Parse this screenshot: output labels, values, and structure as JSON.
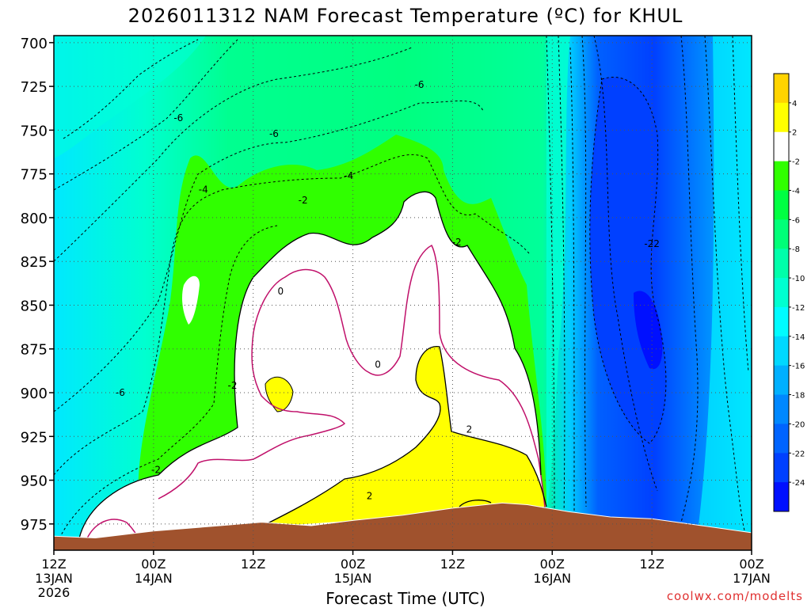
{
  "chart_data": {
    "type": "heatmap",
    "title": "2026011312 NAM Forecast Temperature (ºC) for KHUL",
    "xlabel": "Forecast Time (UTC)",
    "ylabel": "",
    "credit": "coolwx.com/modelts",
    "y_scale": "pressure (hPa, inverted)",
    "ylim": [
      990,
      696
    ],
    "y_ticks": [
      700,
      725,
      750,
      775,
      800,
      825,
      850,
      875,
      900,
      925,
      950,
      975
    ],
    "x_ticks": [
      {
        "hour": 0,
        "l1": "12Z",
        "l2": "13JAN",
        "l3": "2026"
      },
      {
        "hour": 12,
        "l1": "00Z",
        "l2": "14JAN",
        "l3": ""
      },
      {
        "hour": 24,
        "l1": "12Z",
        "l2": "",
        "l3": ""
      },
      {
        "hour": 36,
        "l1": "00Z",
        "l2": "15JAN",
        "l3": ""
      },
      {
        "hour": 48,
        "l1": "12Z",
        "l2": "",
        "l3": ""
      },
      {
        "hour": 60,
        "l1": "00Z",
        "l2": "16JAN",
        "l3": ""
      },
      {
        "hour": 72,
        "l1": "12Z",
        "l2": "",
        "l3": ""
      },
      {
        "hour": 84,
        "l1": "00Z",
        "l2": "17JAN",
        "l3": ""
      }
    ],
    "grid": true,
    "colorbar": {
      "placement": "right",
      "labels": [
        "4",
        "2",
        "-2",
        "-4",
        "-6",
        "-8",
        "-10",
        "-12",
        "-14",
        "-16",
        "-18",
        "-20",
        "-22",
        "-24"
      ],
      "colors": [
        "#ffd400",
        "#ffff00",
        "#ffffff",
        "#30ff00",
        "#00ff42",
        "#00ff78",
        "#00ffaa",
        "#00ffd0",
        "#00fcff",
        "#00d8ff",
        "#00b0ff",
        "#0088ff",
        "#0064ff",
        "#0040ff",
        "#0010ff"
      ]
    },
    "contour_labels": [
      {
        "text": "-6",
        "hour": 15,
        "p": 743
      },
      {
        "text": "-6",
        "hour": 26.5,
        "p": 752
      },
      {
        "text": "-6",
        "hour": 44,
        "p": 724
      },
      {
        "text": "-4",
        "hour": 18,
        "p": 784
      },
      {
        "text": "-4",
        "hour": 35.5,
        "p": 776
      },
      {
        "text": "-2",
        "hour": 30,
        "p": 790
      },
      {
        "text": "-2",
        "hour": 48.5,
        "p": 814
      },
      {
        "text": "0",
        "hour": 27.3,
        "p": 842
      },
      {
        "text": "0",
        "hour": 39,
        "p": 884
      },
      {
        "text": "-6",
        "hour": 8,
        "p": 900
      },
      {
        "text": "-2",
        "hour": 21.5,
        "p": 896
      },
      {
        "text": "-2",
        "hour": 12.3,
        "p": 944
      },
      {
        "text": "2",
        "hour": 38,
        "p": 959
      },
      {
        "text": "2",
        "hour": 50,
        "p": 921
      },
      {
        "text": "-22",
        "hour": 72,
        "p": 815
      }
    ],
    "surface_pressure": [
      {
        "hour": 0,
        "p": 982
      },
      {
        "hour": 5,
        "p": 983
      },
      {
        "hour": 12,
        "p": 979
      },
      {
        "hour": 20,
        "p": 976
      },
      {
        "hour": 25,
        "p": 974
      },
      {
        "hour": 31,
        "p": 976
      },
      {
        "hour": 36,
        "p": 973
      },
      {
        "hour": 42,
        "p": 970
      },
      {
        "hour": 48,
        "p": 966
      },
      {
        "hour": 54,
        "p": 963
      },
      {
        "hour": 57,
        "p": 964
      },
      {
        "hour": 62,
        "p": 968
      },
      {
        "hour": 67,
        "p": 971
      },
      {
        "hour": 72,
        "p": 972
      },
      {
        "hour": 78,
        "p": 976
      },
      {
        "hour": 84,
        "p": 980
      }
    ],
    "regions": {
      "cold_core_center": {
        "hour": 72,
        "p": 865,
        "temp": -24
      },
      "warm_layer_max": {
        "hour": 48,
        "p": 890,
        "temp": 4
      }
    }
  }
}
